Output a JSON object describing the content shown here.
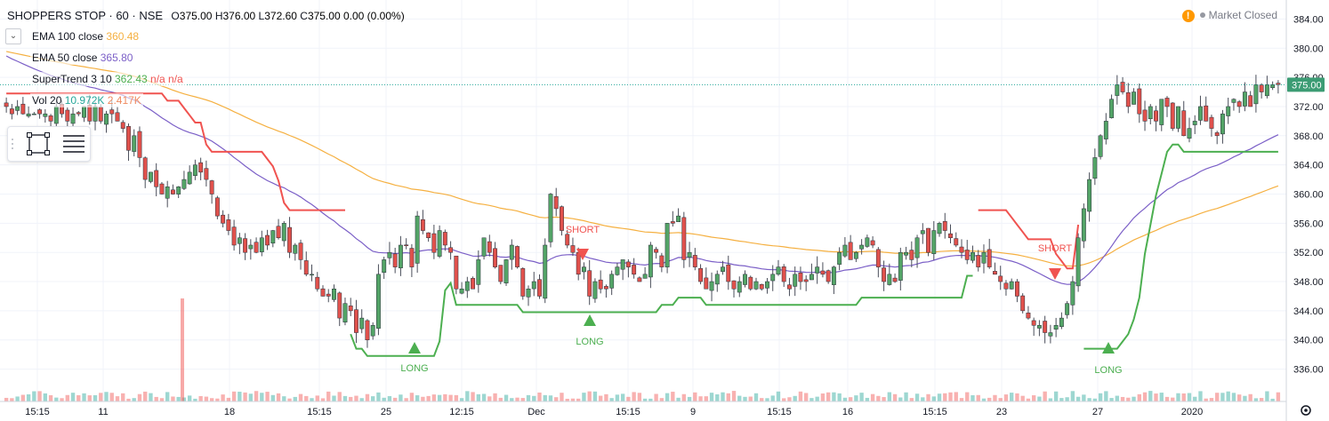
{
  "header": {
    "symbol": "SHOPPERS STOP · 60 · NSE",
    "open_label": "O",
    "open": "375.00",
    "high_label": "H",
    "high": "376.00",
    "low_label": "L",
    "low": "372.60",
    "close_label": "C",
    "close": "375.00",
    "change": "0.00 (0.00%)"
  },
  "market_status": "Market Closed",
  "indicators": {
    "ema100": {
      "label": "EMA 100 close",
      "value": "360.48",
      "color": "#f5b041"
    },
    "ema50": {
      "label": "EMA 50 close",
      "value": "365.80",
      "color": "#7b5fc7"
    },
    "supertrend": {
      "label": "SuperTrend 3 10",
      "value": "362.43",
      "extra": "n/a  n/a",
      "color": "#4caf50"
    },
    "vol": {
      "label": "Vol 20",
      "value1": "10.972K",
      "value2": "2.417K"
    }
  },
  "price_axis": {
    "ticks": [
      "384.00",
      "380.00",
      "376.00",
      "372.00",
      "368.00",
      "364.00",
      "360.00",
      "356.00",
      "352.00",
      "348.00",
      "344.00",
      "340.00",
      "336.00"
    ],
    "current": "375.00"
  },
  "time_axis": {
    "labels": [
      "15:15",
      "11",
      "18",
      "15:15",
      "25",
      "12:15",
      "Dec",
      "15:15",
      "9",
      "15:15",
      "16",
      "15:15",
      "23",
      "27",
      "2020"
    ]
  },
  "signals": {
    "long": "LONG",
    "short": "SHORT"
  },
  "colors": {
    "up": "#53a467",
    "down": "#e0514c",
    "st_up": "#4caf50",
    "st_down": "#f05350"
  },
  "chart_data": {
    "type": "candlestick",
    "y_range": [
      334,
      386
    ],
    "current_price": 375.0,
    "closes": [
      372,
      371,
      372,
      371,
      371,
      371,
      371,
      371,
      370,
      372,
      371,
      370,
      371,
      371,
      372,
      370,
      372,
      370,
      371,
      371,
      370,
      369,
      366,
      368,
      365,
      362,
      363,
      361,
      360,
      361,
      360,
      361,
      362,
      363,
      364,
      363,
      362,
      360,
      357,
      356,
      355,
      353,
      354,
      352,
      353,
      352,
      354,
      353,
      355,
      354,
      356,
      352,
      353,
      351,
      349,
      349,
      347,
      346,
      346,
      347,
      343,
      345,
      344,
      341,
      343,
      340,
      342,
      349,
      351,
      352,
      350,
      353,
      353,
      350,
      357,
      355,
      354,
      352,
      355,
      353,
      352,
      347,
      347,
      348,
      347,
      351,
      354,
      352,
      350,
      348,
      351,
      353,
      350,
      346,
      347,
      348,
      346,
      353,
      360,
      358,
      355,
      353,
      352,
      349,
      350,
      346,
      348,
      347,
      347,
      349,
      350,
      351,
      350,
      349,
      348,
      349,
      353,
      352,
      350,
      356,
      356,
      357,
      351,
      352,
      350,
      348,
      347,
      348,
      349,
      350,
      348,
      347,
      348,
      349,
      347,
      348,
      347,
      348,
      349,
      350,
      348,
      347,
      349,
      348,
      348,
      349,
      350,
      349,
      348,
      350,
      352,
      353,
      351,
      352,
      353,
      354,
      353,
      350,
      348,
      349,
      348,
      352,
      352,
      351,
      354,
      355,
      352,
      355,
      356,
      355,
      354,
      353,
      352,
      351,
      352,
      350,
      352,
      350,
      349,
      348,
      347,
      348,
      346,
      344,
      343,
      342,
      342,
      341,
      341,
      342,
      343,
      345,
      348,
      354,
      358,
      362,
      365,
      368,
      370,
      373,
      375,
      374,
      372,
      374,
      371,
      370,
      372,
      370,
      373,
      372,
      369,
      372,
      368,
      369,
      370,
      372,
      370,
      369,
      368,
      371,
      372,
      373,
      372,
      374,
      372,
      375,
      374,
      375,
      375,
      375
    ]
  }
}
